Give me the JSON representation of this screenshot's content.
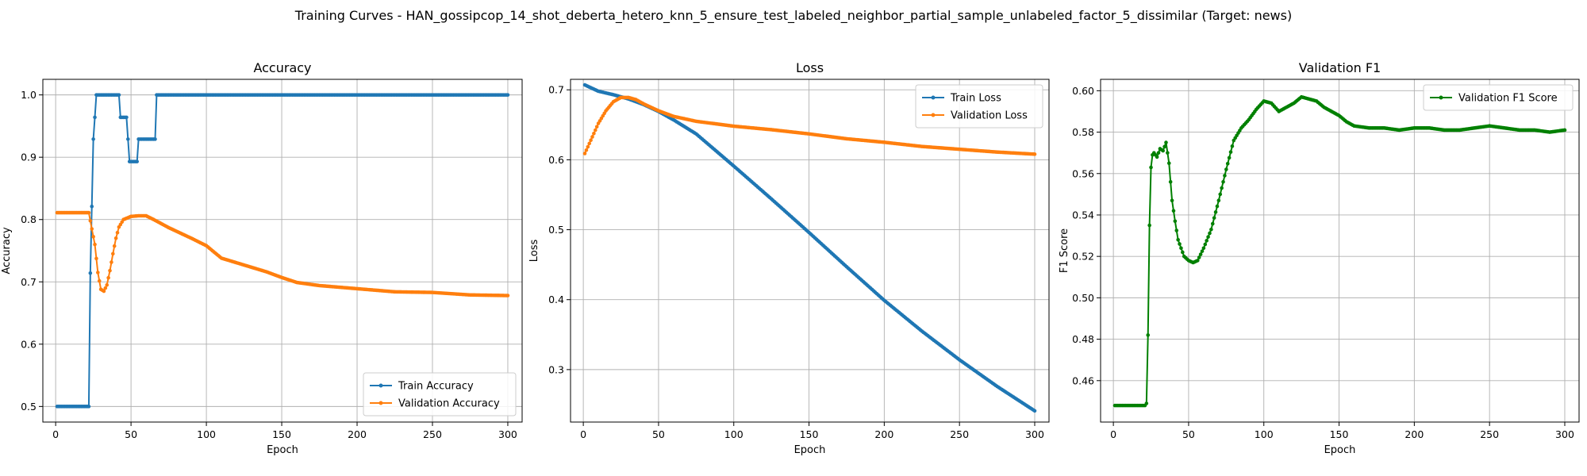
{
  "suptitle": "Training Curves - HAN_gossipcop_14_shot_deberta_hetero_knn_5_ensure_test_labeled_neighbor_partial_sample_unlabeled_factor_5_dissimilar (Target: news)",
  "colors": {
    "train": "#1f77b4",
    "validation": "#ff7f0e",
    "f1": "#008000",
    "grid": "#b0b0b0",
    "axes": "#000000"
  },
  "chart_data": [
    {
      "type": "line",
      "title": "Accuracy",
      "xlabel": "Epoch",
      "ylabel": "Accuracy",
      "xlim": [
        -8.5,
        309.5
      ],
      "ylim": [
        0.475,
        1.025
      ],
      "xticks": [
        0,
        50,
        100,
        150,
        200,
        250,
        300
      ],
      "yticks": [
        0.5,
        0.6,
        0.7,
        0.8,
        0.9,
        1.0
      ],
      "ytick_labels": [
        "0.5",
        "0.6",
        "0.7",
        "0.8",
        "0.9",
        "1.0"
      ],
      "grid": true,
      "legend_loc": "lower-right",
      "x": "1..300",
      "series": [
        {
          "name": "Train Accuracy",
          "color": "#1f77b4",
          "keypoints": [
            [
              1,
              0.5
            ],
            [
              22,
              0.5
            ],
            [
              23,
              0.714
            ],
            [
              24,
              0.821
            ],
            [
              25,
              0.929
            ],
            [
              26,
              0.964
            ],
            [
              27,
              1.0
            ],
            [
              42,
              1.0
            ],
            [
              43,
              0.964
            ],
            [
              47,
              0.964
            ],
            [
              48,
              0.929
            ],
            [
              49,
              0.893
            ],
            [
              54,
              0.893
            ],
            [
              55,
              0.929
            ],
            [
              66,
              0.929
            ],
            [
              67,
              1.0
            ],
            [
              300,
              1.0
            ]
          ]
        },
        {
          "name": "Validation Accuracy",
          "color": "#ff7f0e",
          "keypoints": [
            [
              1,
              0.811
            ],
            [
              22,
              0.811
            ],
            [
              24,
              0.785
            ],
            [
              26,
              0.76
            ],
            [
              28,
              0.715
            ],
            [
              30,
              0.688
            ],
            [
              32,
              0.685
            ],
            [
              34,
              0.695
            ],
            [
              36,
              0.718
            ],
            [
              38,
              0.745
            ],
            [
              40,
              0.77
            ],
            [
              42,
              0.788
            ],
            [
              45,
              0.8
            ],
            [
              50,
              0.805
            ],
            [
              55,
              0.806
            ],
            [
              60,
              0.806
            ],
            [
              65,
              0.8
            ],
            [
              75,
              0.787
            ],
            [
              90,
              0.77
            ],
            [
              100,
              0.758
            ],
            [
              110,
              0.738
            ],
            [
              125,
              0.727
            ],
            [
              140,
              0.716
            ],
            [
              150,
              0.707
            ],
            [
              160,
              0.699
            ],
            [
              175,
              0.694
            ],
            [
              200,
              0.689
            ],
            [
              225,
              0.684
            ],
            [
              250,
              0.683
            ],
            [
              275,
              0.679
            ],
            [
              300,
              0.678
            ]
          ]
        }
      ]
    },
    {
      "type": "line",
      "title": "Loss",
      "xlabel": "Epoch",
      "ylabel": "Loss",
      "xlim": [
        -8.5,
        309.5
      ],
      "ylim": [
        0.225,
        0.715
      ],
      "xticks": [
        0,
        50,
        100,
        150,
        200,
        250,
        300
      ],
      "yticks": [
        0.3,
        0.4,
        0.5,
        0.6,
        0.7
      ],
      "ytick_labels": [
        "0.3",
        "0.4",
        "0.5",
        "0.6",
        "0.7"
      ],
      "grid": true,
      "legend_loc": "upper-right",
      "x": "1..300",
      "series": [
        {
          "name": "Train Loss",
          "color": "#1f77b4",
          "keypoints": [
            [
              1,
              0.707
            ],
            [
              10,
              0.698
            ],
            [
              20,
              0.693
            ],
            [
              30,
              0.687
            ],
            [
              40,
              0.679
            ],
            [
              50,
              0.669
            ],
            [
              60,
              0.657
            ],
            [
              75,
              0.637
            ],
            [
              100,
              0.591
            ],
            [
              125,
              0.544
            ],
            [
              150,
              0.496
            ],
            [
              175,
              0.447
            ],
            [
              200,
              0.399
            ],
            [
              225,
              0.355
            ],
            [
              250,
              0.314
            ],
            [
              275,
              0.276
            ],
            [
              300,
              0.241
            ]
          ]
        },
        {
          "name": "Validation Loss",
          "color": "#ff7f0e",
          "keypoints": [
            [
              1,
              0.609
            ],
            [
              5,
              0.628
            ],
            [
              10,
              0.652
            ],
            [
              15,
              0.67
            ],
            [
              20,
              0.683
            ],
            [
              25,
              0.689
            ],
            [
              30,
              0.689
            ],
            [
              35,
              0.686
            ],
            [
              40,
              0.68
            ],
            [
              50,
              0.67
            ],
            [
              60,
              0.662
            ],
            [
              75,
              0.655
            ],
            [
              100,
              0.648
            ],
            [
              125,
              0.643
            ],
            [
              150,
              0.637
            ],
            [
              175,
              0.63
            ],
            [
              200,
              0.625
            ],
            [
              225,
              0.619
            ],
            [
              250,
              0.615
            ],
            [
              275,
              0.611
            ],
            [
              300,
              0.608
            ]
          ]
        }
      ]
    },
    {
      "type": "line",
      "title": "Validation F1",
      "xlabel": "Epoch",
      "ylabel": "F1 Score",
      "xlim": [
        -8.5,
        309.5
      ],
      "ylim": [
        0.44,
        0.6055
      ],
      "xticks": [
        0,
        50,
        100,
        150,
        200,
        250,
        300
      ],
      "yticks": [
        0.46,
        0.48,
        0.5,
        0.52,
        0.54,
        0.56,
        0.58,
        0.6
      ],
      "ytick_labels": [
        "0.46",
        "0.48",
        "0.50",
        "0.52",
        "0.54",
        "0.56",
        "0.58",
        "0.60"
      ],
      "grid": true,
      "legend_loc": "upper-right",
      "x": "1..300",
      "series": [
        {
          "name": "Validation F1 Score",
          "color": "#008000",
          "keypoints": [
            [
              1,
              0.448
            ],
            [
              21,
              0.448
            ],
            [
              22,
              0.449
            ],
            [
              23,
              0.482
            ],
            [
              24,
              0.535
            ],
            [
              25,
              0.563
            ],
            [
              26,
              0.569
            ],
            [
              27,
              0.57
            ],
            [
              29,
              0.568
            ],
            [
              31,
              0.572
            ],
            [
              33,
              0.571
            ],
            [
              35,
              0.575
            ],
            [
              37,
              0.565
            ],
            [
              39,
              0.547
            ],
            [
              41,
              0.537
            ],
            [
              43,
              0.528
            ],
            [
              45,
              0.524
            ],
            [
              47,
              0.52
            ],
            [
              50,
              0.518
            ],
            [
              53,
              0.517
            ],
            [
              56,
              0.518
            ],
            [
              60,
              0.524
            ],
            [
              65,
              0.533
            ],
            [
              70,
              0.547
            ],
            [
              75,
              0.562
            ],
            [
              80,
              0.576
            ],
            [
              85,
              0.582
            ],
            [
              90,
              0.586
            ],
            [
              95,
              0.591
            ],
            [
              100,
              0.595
            ],
            [
              105,
              0.594
            ],
            [
              110,
              0.59
            ],
            [
              115,
              0.592
            ],
            [
              120,
              0.594
            ],
            [
              125,
              0.597
            ],
            [
              130,
              0.596
            ],
            [
              135,
              0.595
            ],
            [
              140,
              0.592
            ],
            [
              145,
              0.59
            ],
            [
              150,
              0.588
            ],
            [
              155,
              0.585
            ],
            [
              160,
              0.583
            ],
            [
              170,
              0.582
            ],
            [
              180,
              0.582
            ],
            [
              190,
              0.581
            ],
            [
              200,
              0.582
            ],
            [
              210,
              0.582
            ],
            [
              220,
              0.581
            ],
            [
              230,
              0.581
            ],
            [
              240,
              0.582
            ],
            [
              250,
              0.583
            ],
            [
              260,
              0.582
            ],
            [
              270,
              0.581
            ],
            [
              280,
              0.581
            ],
            [
              290,
              0.58
            ],
            [
              300,
              0.581
            ]
          ]
        }
      ]
    }
  ]
}
